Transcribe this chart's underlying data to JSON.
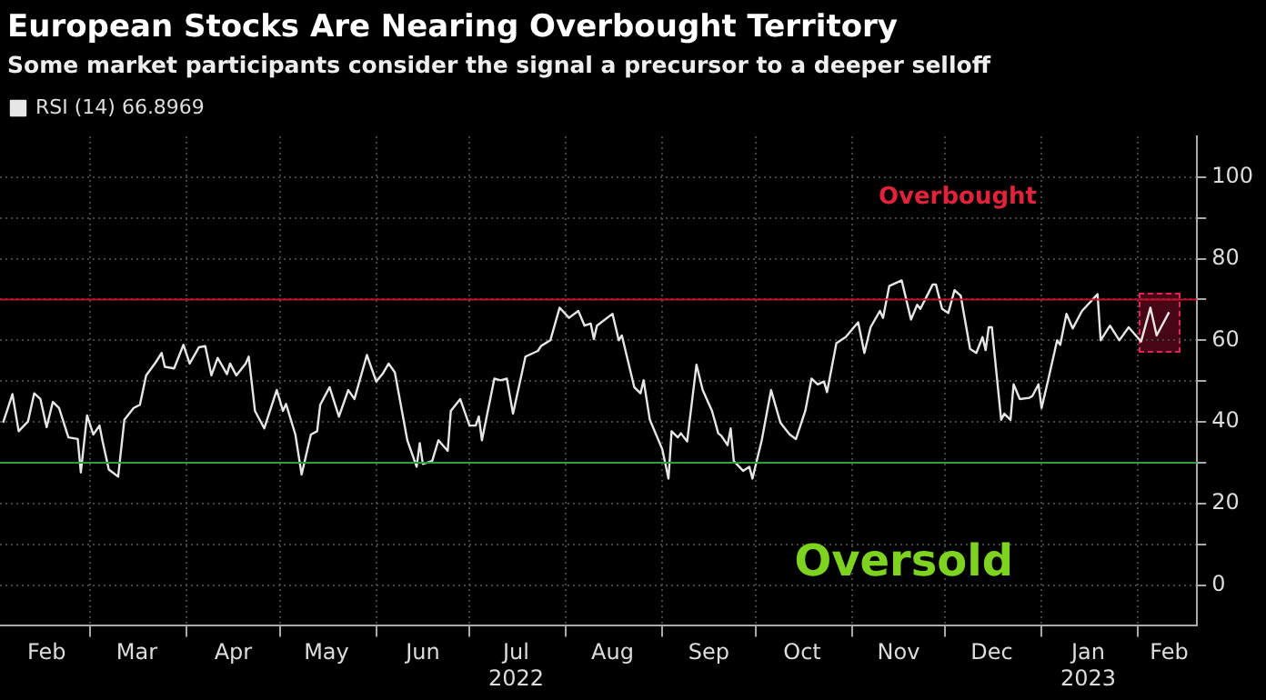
{
  "chart_data": {
    "type": "line",
    "title": "European Stocks Are Nearing Overbought Territory",
    "subtitle": "Some market participants consider the signal a precursor to a deeper selloff",
    "series": [
      {
        "name": "RSI (14) 66.8969",
        "color": "#e6e6e6",
        "x": [
          "2022-02-01",
          "2022-02-04",
          "2022-02-06",
          "2022-02-09",
          "2022-02-11",
          "2022-02-13",
          "2022-02-15",
          "2022-02-17",
          "2022-02-19",
          "2022-02-22",
          "2022-02-25",
          "2022-02-26",
          "2022-02-28",
          "2022-03-02",
          "2022-03-04",
          "2022-03-05",
          "2022-03-07",
          "2022-03-10",
          "2022-03-12",
          "2022-03-15",
          "2022-03-17",
          "2022-03-19",
          "2022-03-22",
          "2022-03-24",
          "2022-03-25",
          "2022-03-28",
          "2022-03-31",
          "2022-04-02",
          "2022-04-05",
          "2022-04-07",
          "2022-04-09",
          "2022-04-11",
          "2022-04-14",
          "2022-04-15",
          "2022-04-17",
          "2022-04-20",
          "2022-04-21",
          "2022-04-23",
          "2022-04-26",
          "2022-04-30",
          "2022-05-02",
          "2022-05-03",
          "2022-05-06",
          "2022-05-08",
          "2022-05-11",
          "2022-05-13",
          "2022-05-14",
          "2022-05-17",
          "2022-05-20",
          "2022-05-23",
          "2022-05-25",
          "2022-05-29",
          "2022-06-01",
          "2022-06-03",
          "2022-06-05",
          "2022-06-07",
          "2022-06-11",
          "2022-06-14",
          "2022-06-15",
          "2022-06-16",
          "2022-06-19",
          "2022-06-21",
          "2022-06-24",
          "2022-06-25",
          "2022-06-28",
          "2022-07-01",
          "2022-07-03",
          "2022-07-04",
          "2022-07-05",
          "2022-07-09",
          "2022-07-11",
          "2022-07-13",
          "2022-07-15",
          "2022-07-19",
          "2022-07-23",
          "2022-07-24",
          "2022-07-27",
          "2022-07-30",
          "2022-08-02",
          "2022-08-05",
          "2022-08-07",
          "2022-08-09",
          "2022-08-10",
          "2022-08-11",
          "2022-08-16",
          "2022-08-18",
          "2022-08-19",
          "2022-08-23",
          "2022-08-25",
          "2022-08-26",
          "2022-08-28",
          "2022-09-01",
          "2022-09-03",
          "2022-09-04",
          "2022-09-06",
          "2022-09-07",
          "2022-09-09",
          "2022-09-12",
          "2022-09-14",
          "2022-09-17",
          "2022-09-19",
          "2022-09-20",
          "2022-09-22",
          "2022-09-23",
          "2022-09-24",
          "2022-09-27",
          "2022-09-29",
          "2022-09-30",
          "2022-10-03",
          "2022-10-06",
          "2022-10-09",
          "2022-10-12",
          "2022-10-14",
          "2022-10-17",
          "2022-10-19",
          "2022-10-21",
          "2022-10-23",
          "2022-10-24",
          "2022-10-27",
          "2022-10-30",
          "2022-11-03",
          "2022-11-05",
          "2022-11-07",
          "2022-11-10",
          "2022-11-11",
          "2022-11-13",
          "2022-11-17",
          "2022-11-20",
          "2022-11-22",
          "2022-11-23",
          "2022-11-27",
          "2022-11-28",
          "2022-11-30",
          "2022-12-02",
          "2022-12-04",
          "2022-12-06",
          "2022-12-09",
          "2022-12-11",
          "2022-12-13",
          "2022-12-14",
          "2022-12-15",
          "2022-12-16",
          "2022-12-19",
          "2022-12-20",
          "2022-12-22",
          "2022-12-23",
          "2022-12-25",
          "2022-12-28",
          "2022-12-29",
          "2022-12-31",
          "2023-01-01",
          "2023-01-03",
          "2023-01-06",
          "2023-01-07",
          "2023-01-09",
          "2023-01-11",
          "2023-01-14",
          "2023-01-19",
          "2023-01-20",
          "2023-01-23",
          "2023-01-26",
          "2023-01-29",
          "2023-02-02",
          "2023-02-05",
          "2023-02-07",
          "2023-02-11"
        ],
        "values": [
          39.8,
          46.8,
          37.7,
          40.1,
          47,
          45.6,
          38.7,
          44.9,
          43.4,
          36.2,
          35.8,
          27.6,
          41.6,
          36.9,
          39.1,
          35.2,
          28.3,
          26.6,
          40.5,
          43.4,
          44.2,
          51.4,
          54.5,
          56.9,
          53.5,
          53.1,
          58.9,
          54.3,
          58.3,
          58.6,
          51.4,
          55.7,
          51.7,
          54.3,
          51.4,
          54.3,
          56,
          42.7,
          38.4,
          47.8,
          42.7,
          44.4,
          36.9,
          27.1,
          36.9,
          37.7,
          44.2,
          48.5,
          41.3,
          47.8,
          45.6,
          56.4,
          49.9,
          51.7,
          54.3,
          52.1,
          35.5,
          29,
          34.8,
          29.7,
          30.4,
          35.5,
          32.9,
          42.7,
          45.6,
          39.1,
          39.1,
          41.3,
          35.5,
          50.6,
          50.2,
          50.6,
          42,
          56,
          57.4,
          58.6,
          60,
          68,
          65.5,
          67.2,
          63.6,
          64.1,
          60.3,
          63.6,
          66.5,
          60,
          61.2,
          48.5,
          47,
          50.2,
          40.5,
          33.3,
          26.1,
          37.7,
          36.2,
          37.2,
          35.2,
          54,
          47.8,
          42.7,
          37.2,
          36.6,
          34.3,
          38.4,
          30.4,
          28,
          29,
          26.1,
          35.5,
          47.8,
          39.8,
          36.9,
          35.8,
          42.7,
          50.6,
          49.2,
          49.9,
          47.3,
          59.3,
          60.8,
          64.4,
          56.9,
          63.2,
          67.2,
          65.5,
          73.3,
          74.7,
          65.1,
          68.7,
          67.7,
          73.7,
          73.7,
          67.7,
          66.7,
          72.3,
          70.9,
          57.9,
          56.9,
          60.8,
          57.6,
          63.2,
          63.2,
          40.5,
          42,
          40.5,
          49.2,
          45.6,
          45.9,
          46.3,
          49.2,
          43.4,
          49.9,
          60,
          58.9,
          66.5,
          62.9,
          67.2,
          71.3,
          60,
          63.6,
          60,
          63.2,
          59.7,
          68,
          61.2,
          66.9
        ]
      }
    ],
    "xlim": [
      "2022-01-31",
      "2023-02-20"
    ],
    "xticks": [
      {
        "value": "2022-02-15",
        "label": "Feb"
      },
      {
        "value": "2022-03-01",
        "label": null
      },
      {
        "value": "2022-03-16",
        "label": "Mar"
      },
      {
        "value": "2022-04-01",
        "label": null
      },
      {
        "value": "2022-04-16",
        "label": "Apr"
      },
      {
        "value": "2022-05-01",
        "label": null
      },
      {
        "value": "2022-05-16",
        "label": "May"
      },
      {
        "value": "2022-06-01",
        "label": null
      },
      {
        "value": "2022-06-16",
        "label": "Jun"
      },
      {
        "value": "2022-07-01",
        "label": null
      },
      {
        "value": "2022-07-16",
        "label": "Jul\n2022"
      },
      {
        "value": "2022-08-01",
        "label": null
      },
      {
        "value": "2022-08-16",
        "label": "Aug"
      },
      {
        "value": "2022-09-01",
        "label": null
      },
      {
        "value": "2022-09-16",
        "label": "Sep"
      },
      {
        "value": "2022-10-01",
        "label": null
      },
      {
        "value": "2022-10-16",
        "label": "Oct"
      },
      {
        "value": "2022-11-01",
        "label": null
      },
      {
        "value": "2022-11-16",
        "label": "Nov"
      },
      {
        "value": "2022-12-01",
        "label": null
      },
      {
        "value": "2022-12-16",
        "label": "Dec"
      },
      {
        "value": "2023-01-01",
        "label": null
      },
      {
        "value": "2023-01-16",
        "label": "Jan\n2023"
      },
      {
        "value": "2023-02-01",
        "label": null
      },
      {
        "value": "2023-02-11",
        "label": "Feb"
      }
    ],
    "ylim": [
      -10,
      110
    ],
    "yticks": [
      0,
      {
        "value": 10,
        "label": null
      },
      20,
      {
        "value": 30,
        "label": null
      },
      40,
      {
        "value": 50,
        "label": null
      },
      60,
      {
        "value": 70,
        "label": null
      },
      80,
      {
        "value": 90,
        "label": null
      },
      100
    ],
    "ref_lines": [
      {
        "axis": "y",
        "value": 70,
        "label": "Overbought",
        "color": "#c8102e"
      },
      {
        "axis": "y",
        "value": 30,
        "label": "Oversold",
        "color": "#2e9e3e"
      }
    ],
    "grid": true,
    "legend": "top left",
    "marker": "none",
    "line_style": "solid"
  }
}
